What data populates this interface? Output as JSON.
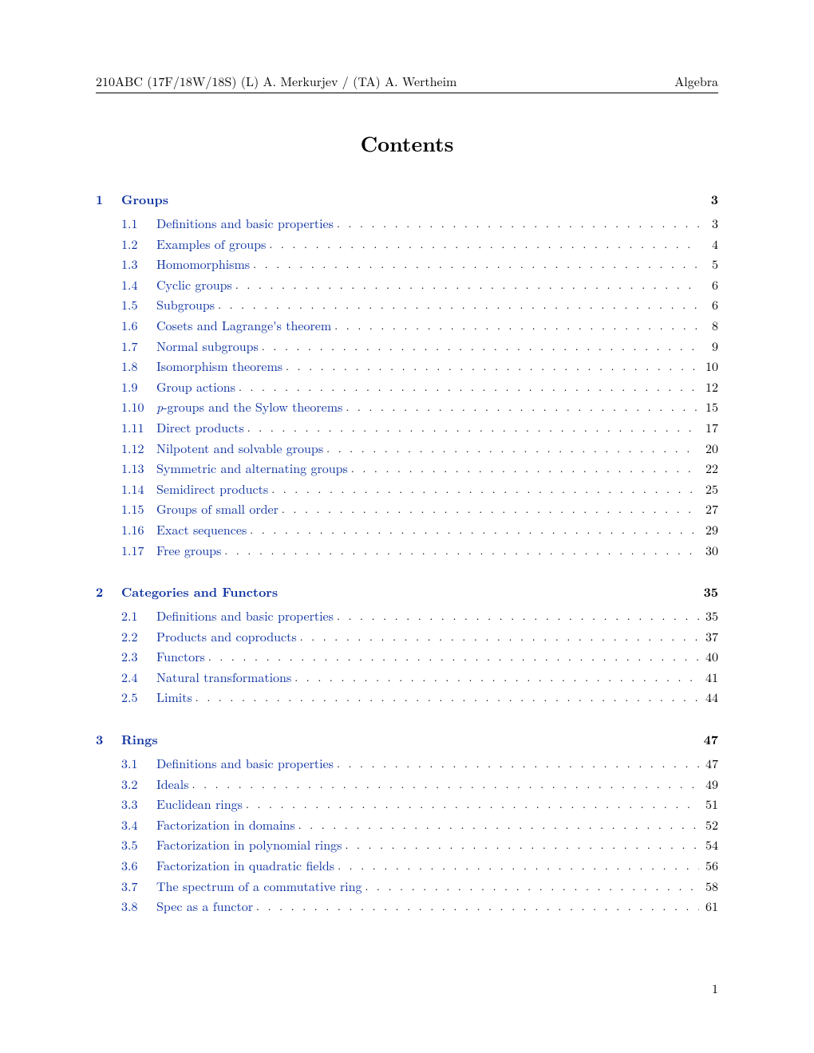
{
  "header": {
    "left": "210ABC (17F/18W/18S)      (L) A. Merkurjev / (TA) A. Wertheim",
    "right": "Algebra"
  },
  "title": "Contents",
  "link_color": "#0a2f9e",
  "text_color": "#000000",
  "sections": [
    {
      "num": "1",
      "title": "Groups",
      "page": "3",
      "subs": [
        {
          "num": "1.1",
          "title": "Definitions and basic properties",
          "page": "3"
        },
        {
          "num": "1.2",
          "title": "Examples of groups",
          "page": "4"
        },
        {
          "num": "1.3",
          "title": "Homomorphisms",
          "page": "5"
        },
        {
          "num": "1.4",
          "title": "Cyclic groups",
          "page": "6"
        },
        {
          "num": "1.5",
          "title": "Subgroups",
          "page": "6"
        },
        {
          "num": "1.6",
          "title": "Cosets and Lagrange's theorem",
          "page": "8"
        },
        {
          "num": "1.7",
          "title": "Normal subgroups",
          "page": "9"
        },
        {
          "num": "1.8",
          "title": "Isomorphism theorems",
          "page": "10"
        },
        {
          "num": "1.9",
          "title": "Group actions",
          "page": "12"
        },
        {
          "num": "1.10",
          "title_html": "<span class=\"sub-italic\">p</span>-groups and the Sylow theorems",
          "page": "15"
        },
        {
          "num": "1.11",
          "title": "Direct products",
          "page": "17"
        },
        {
          "num": "1.12",
          "title": "Nilpotent and solvable groups",
          "page": "20"
        },
        {
          "num": "1.13",
          "title": "Symmetric and alternating groups",
          "page": "22"
        },
        {
          "num": "1.14",
          "title": "Semidirect products",
          "page": "25"
        },
        {
          "num": "1.15",
          "title": "Groups of small order",
          "page": "27"
        },
        {
          "num": "1.16",
          "title": "Exact sequences",
          "page": "29"
        },
        {
          "num": "1.17",
          "title": "Free groups",
          "page": "30"
        }
      ]
    },
    {
      "num": "2",
      "title": "Categories and Functors",
      "page": "35",
      "subs": [
        {
          "num": "2.1",
          "title": "Definitions and basic properties",
          "page": "35"
        },
        {
          "num": "2.2",
          "title": "Products and coproducts",
          "page": "37"
        },
        {
          "num": "2.3",
          "title": "Functors",
          "page": "40"
        },
        {
          "num": "2.4",
          "title": "Natural transformations",
          "page": "41"
        },
        {
          "num": "2.5",
          "title": "Limits",
          "page": "44"
        }
      ]
    },
    {
      "num": "3",
      "title": "Rings",
      "page": "47",
      "subs": [
        {
          "num": "3.1",
          "title": "Definitions and basic properties",
          "page": "47"
        },
        {
          "num": "3.2",
          "title": "Ideals",
          "page": "49"
        },
        {
          "num": "3.3",
          "title": "Euclidean rings",
          "page": "51"
        },
        {
          "num": "3.4",
          "title": "Factorization in domains",
          "page": "52"
        },
        {
          "num": "3.5",
          "title": "Factorization in polynomial rings",
          "page": "54"
        },
        {
          "num": "3.6",
          "title": "Factorization in quadratic fields",
          "page": "56"
        },
        {
          "num": "3.7",
          "title": "The spectrum of a commutative ring",
          "page": "58"
        },
        {
          "num": "3.8",
          "title": "Spec as a functor",
          "page": "61"
        }
      ]
    }
  ],
  "page_number": "1"
}
